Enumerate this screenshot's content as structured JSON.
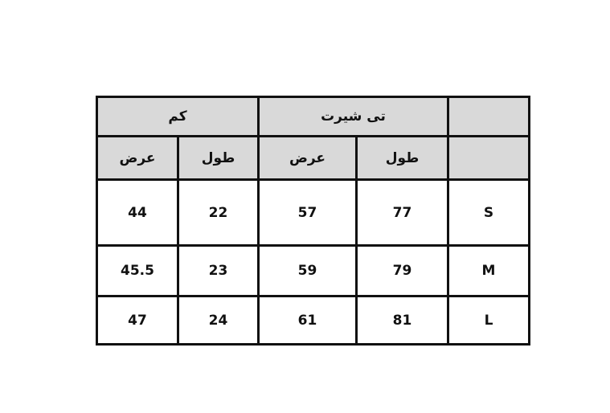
{
  "header": {
    "group_tshirt": "تی شیرت",
    "group_sleeve": "کم",
    "length": "طول",
    "width": "عرض"
  },
  "rows": [
    {
      "size": "S",
      "tshirt_length": "77",
      "tshirt_width": "57",
      "sleeve_length": "22",
      "sleeve_width": "44"
    },
    {
      "size": "M",
      "tshirt_length": "79",
      "tshirt_width": "59",
      "sleeve_length": "23",
      "sleeve_width": "45.5"
    },
    {
      "size": "L",
      "tshirt_length": "81",
      "tshirt_width": "61",
      "sleeve_length": "24",
      "sleeve_width": "47"
    }
  ],
  "colors": {
    "header_bg": "#d9d9d9",
    "border": "#111111"
  }
}
